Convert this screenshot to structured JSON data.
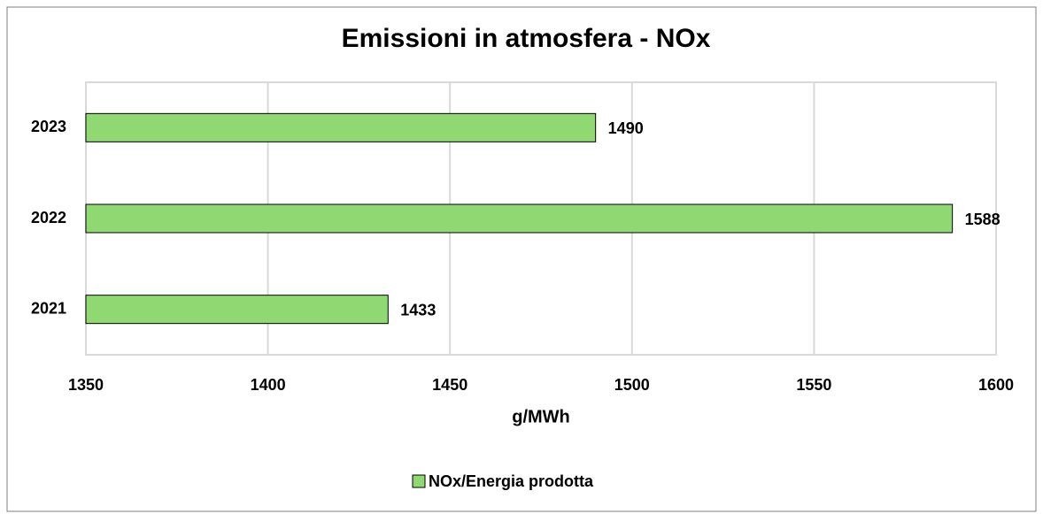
{
  "chart_data": {
    "type": "hbar",
    "title": "Emissioni in atmosfera - NOx",
    "categories": [
      "2021",
      "2022",
      "2023"
    ],
    "series": [
      {
        "name": "NOx/Energia prodotta",
        "color": "#8fd872",
        "values": [
          1433,
          1588,
          1490
        ]
      }
    ],
    "xlabel": "g/MWh",
    "xlim": [
      1350,
      1600
    ],
    "xticks": [
      1350,
      1400,
      1450,
      1500,
      1550,
      1600
    ],
    "grid": true,
    "legend": "bottom"
  }
}
